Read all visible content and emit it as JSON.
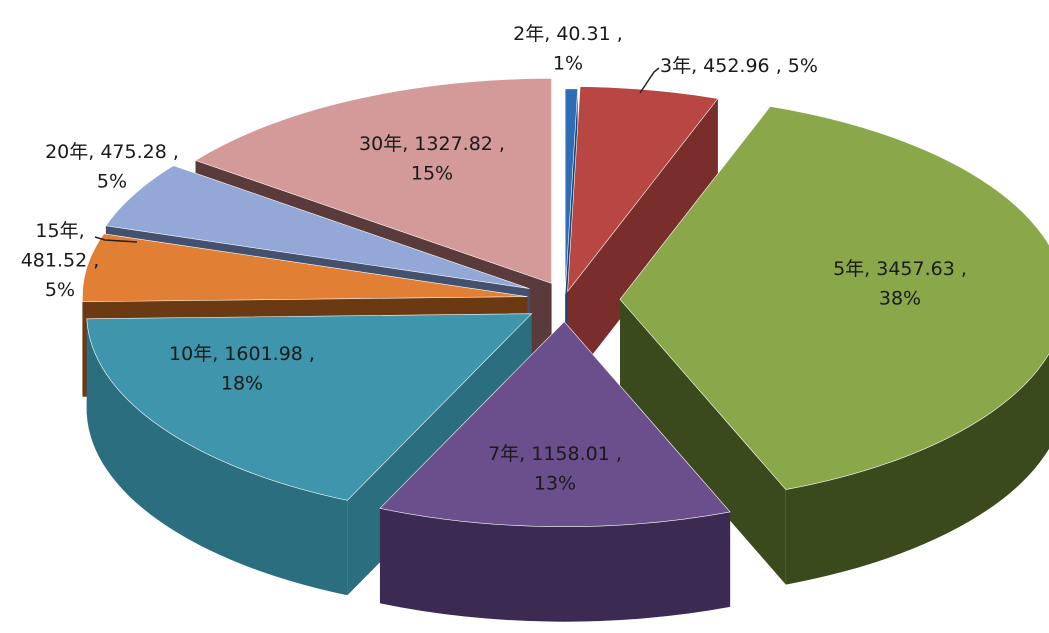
{
  "chart_data": {
    "type": "pie",
    "style": "3d-exploded",
    "slices": [
      {
        "category": "2年",
        "value": 40.31,
        "percent": "1%",
        "label_line1": "2年, 40.31 ,",
        "label_line2": "1%",
        "color": "#2e6db4",
        "side_color": "#1c4677"
      },
      {
        "category": "3年",
        "value": 452.96,
        "percent": "5%",
        "label_line1": "3年, 452.96 , 5%",
        "label_line2": "",
        "color": "#b84744",
        "side_color": "#7a2e2c"
      },
      {
        "category": "5年",
        "value": 3457.63,
        "percent": "38%",
        "label_line1": "5年, 3457.63 ,",
        "label_line2": "38%",
        "color": "#8aa84a",
        "side_color": "#3a4a1c"
      },
      {
        "category": "7年",
        "value": 1158.01,
        "percent": "13%",
        "label_line1": "7年, 1158.01 ,",
        "label_line2": "13%",
        "color": "#6b4f8c",
        "side_color": "#3b2b52"
      },
      {
        "category": "10年",
        "value": 1601.98,
        "percent": "18%",
        "label_line1": "10年, 1601.98 ,",
        "label_line2": "18%",
        "color": "#3e95ac",
        "side_color": "#2a6e80"
      },
      {
        "category": "15年",
        "value": 481.52,
        "percent": "5%",
        "label_line1": "15年,",
        "label_line2": "481.52 ,",
        "label_line3": "5%",
        "color": "#e17f35",
        "side_color": "#6b3a12"
      },
      {
        "category": "20年",
        "value": 475.28,
        "percent": "5%",
        "label_line1": "20年, 475.28 ,",
        "label_line2": "5%",
        "color": "#93a8d6",
        "side_color": "#44516e"
      },
      {
        "category": "30年",
        "value": 1327.82,
        "percent": "15%",
        "label_line1": "30年, 1327.82 ,",
        "label_line2": "15%",
        "color": "#d39a99",
        "side_color": "#5a3a3a"
      }
    ]
  }
}
